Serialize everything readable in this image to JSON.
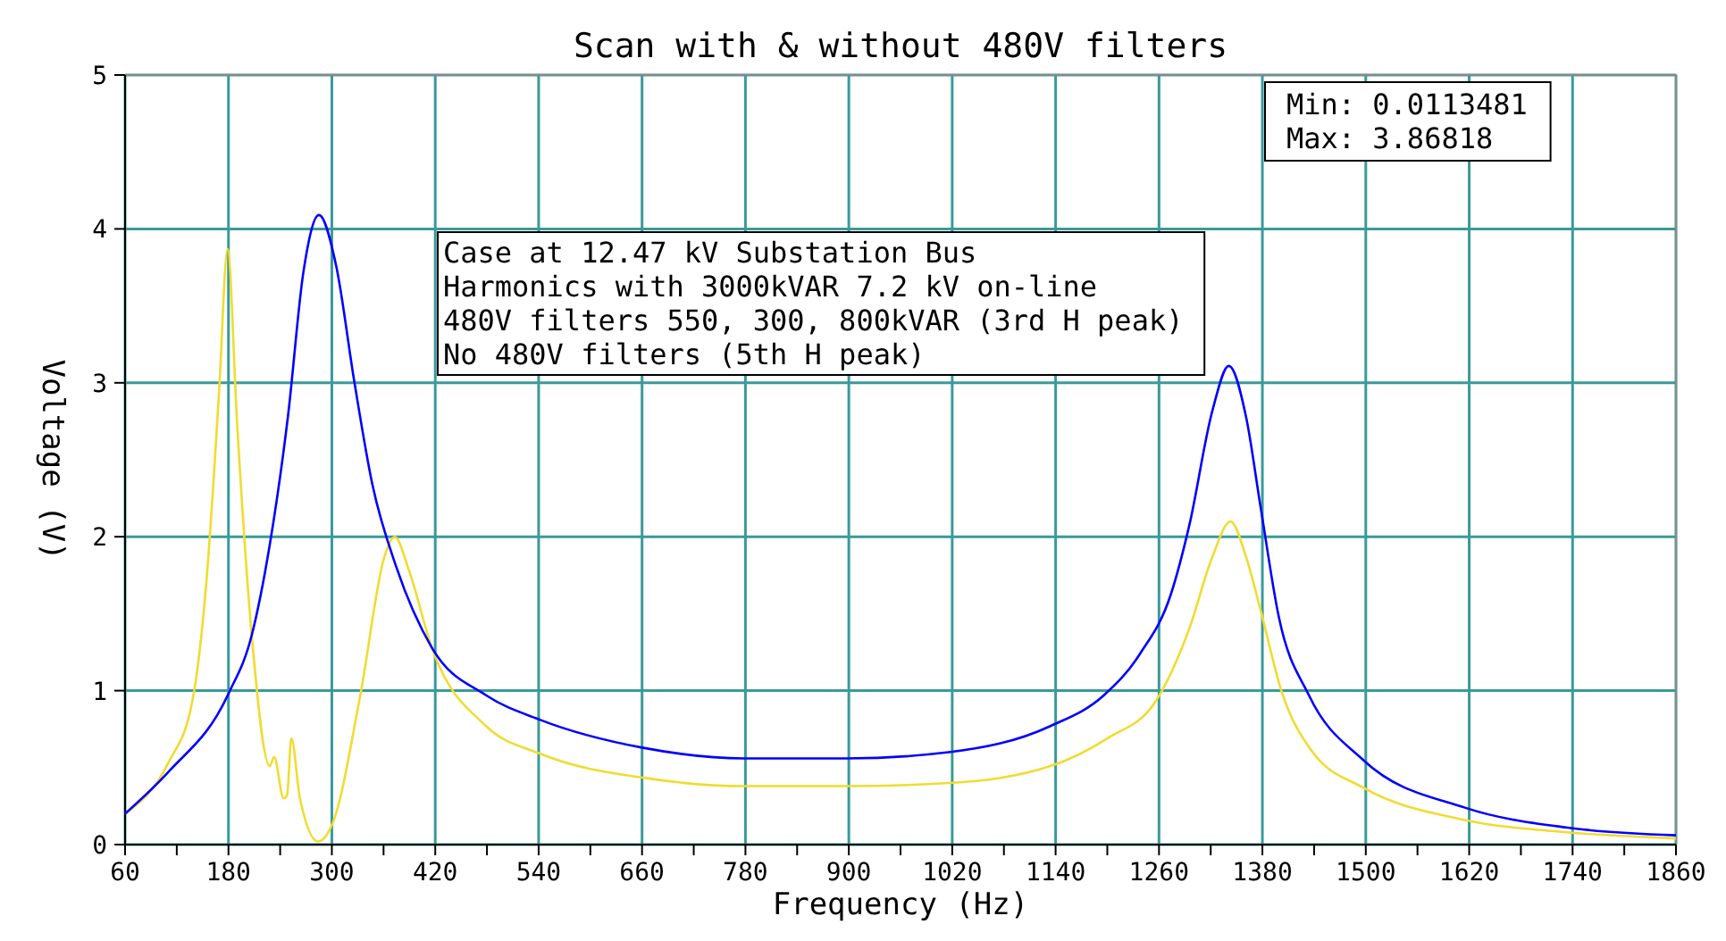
{
  "chart_data": {
    "type": "line",
    "title": "Scan with & without 480V filters",
    "xlabel": "Frequency (Hz)",
    "ylabel": "Voltage (V)",
    "xlim": [
      60,
      1860
    ],
    "xticks": [
      60,
      {
        "value": 120,
        "label": null
      },
      180,
      {
        "value": 240,
        "label": null
      },
      300,
      {
        "value": 360,
        "label": null
      },
      420,
      {
        "value": 480,
        "label": null
      },
      540,
      {
        "value": 600,
        "label": null
      },
      660,
      {
        "value": 720,
        "label": null
      },
      780,
      {
        "value": 840,
        "label": null
      },
      900,
      {
        "value": 960,
        "label": null
      },
      1020,
      {
        "value": 1080,
        "label": null
      },
      1140,
      {
        "value": 1200,
        "label": null
      },
      1260,
      {
        "value": 1320,
        "label": null
      },
      1380,
      {
        "value": 1440,
        "label": null
      },
      1500,
      {
        "value": 1560,
        "label": null
      },
      1620,
      {
        "value": 1680,
        "label": null
      },
      1740,
      {
        "value": 1800,
        "label": null
      },
      1860
    ],
    "ylim": [
      0,
      5
    ],
    "yticks": [
      0,
      1,
      2,
      3,
      4,
      5
    ],
    "grid": true,
    "marker": "none",
    "line_style": "solid",
    "annotations": [
      "Case at 12.47 kV Substation Bus",
      "Harmonics with 3000kVAR 7.2 kV on-line",
      "480V filters 550, 300, 800kVAR (3rd H peak)",
      "No 480V filters (5th H peak)",
      "Min: 0.0113481",
      "Max: 3.86818"
    ],
    "series": [
      {
        "color": "#f0dc30",
        "x": [
          60,
          110,
          138,
          155,
          169,
          179,
          190,
          207,
          228,
          233,
          244,
          248,
          253,
          263,
          284,
          301,
          333,
          361,
          373,
          389,
          416,
          479,
          542,
          667,
          778,
          897,
          1016,
          1134,
          1200,
          1256,
          1295,
          1322,
          1343,
          1361,
          1378,
          1402,
          1437,
          1497,
          1615,
          1734,
          1860
        ],
        "values": [
          0.2,
          0.53,
          0.93,
          1.75,
          2.93,
          3.87,
          2.74,
          1.36,
          0.51,
          0.57,
          0.3,
          0.32,
          0.69,
          0.3,
          0.02,
          0.14,
          0.97,
          1.87,
          2.0,
          1.79,
          1.28,
          0.77,
          0.59,
          0.43,
          0.38,
          0.38,
          0.4,
          0.51,
          0.69,
          0.93,
          1.4,
          1.87,
          2.1,
          1.87,
          1.52,
          1.0,
          0.61,
          0.37,
          0.16,
          0.08,
          0.04
        ]
      },
      {
        "color": "#0000ff",
        "x": [
          60,
          110,
          180,
          207,
          228,
          249,
          267,
          285,
          305,
          326,
          347,
          375,
          416,
          479,
          542,
          660,
          778,
          897,
          1016,
          1134,
          1196,
          1238,
          1274,
          1295,
          1322,
          1341,
          1361,
          1378,
          1399,
          1434,
          1497,
          1615,
          1734,
          1860
        ],
        "values": [
          0.2,
          0.47,
          0.98,
          1.36,
          1.95,
          2.78,
          3.72,
          4.09,
          3.76,
          3.01,
          2.34,
          1.8,
          1.28,
          0.97,
          0.81,
          0.63,
          0.56,
          0.56,
          0.6,
          0.77,
          0.97,
          1.24,
          1.63,
          2.07,
          2.82,
          3.11,
          2.78,
          2.19,
          1.48,
          0.97,
          0.55,
          0.24,
          0.11,
          0.06
        ]
      }
    ]
  }
}
